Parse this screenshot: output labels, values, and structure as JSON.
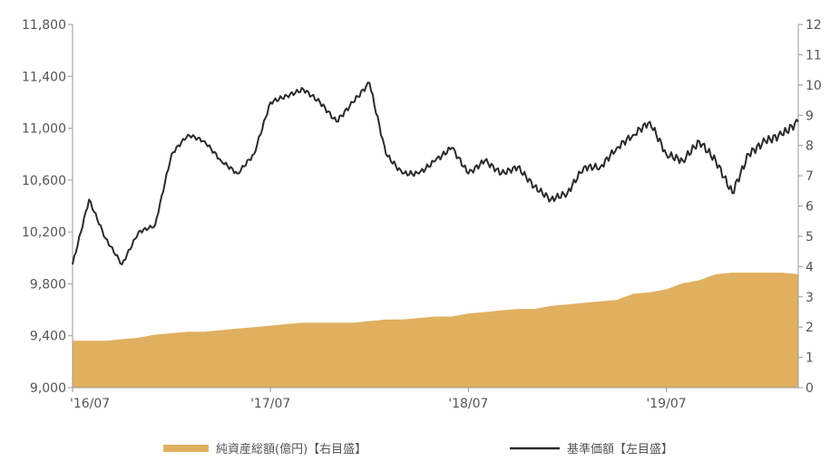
{
  "colors": {
    "line": "#2e2a2a",
    "area": "#e0b060",
    "axis": "#9a9a9a",
    "text": "#555555"
  },
  "legend": {
    "area_label": "純資産総額(億円)【右目盛】",
    "line_label": "基準価額【左目盛】"
  },
  "chart_data": {
    "type": "line",
    "title": "",
    "xlabel": "",
    "ylabel": "",
    "x_ticks": [
      "'16/07",
      "'17/07",
      "'18/07",
      "'19/07"
    ],
    "y_left_ticks": [
      "9,000",
      "9,400",
      "9,800",
      "10,200",
      "10,600",
      "11,000",
      "11,400",
      "11,800"
    ],
    "y_right_ticks": [
      "0",
      "1",
      "2",
      "3",
      "4",
      "5",
      "6",
      "7",
      "8",
      "9",
      "10",
      "11",
      "12"
    ],
    "y_left_lim": [
      9000,
      11800
    ],
    "y_right_lim": [
      0,
      12
    ],
    "x_lim": [
      "2016-07",
      "2020-03"
    ],
    "legend_position": "bottom",
    "series": [
      {
        "name": "基準価額【左目盛】",
        "axis": "left",
        "type": "line",
        "x": [
          "2016-07",
          "2016-08",
          "2016-09",
          "2016-10",
          "2016-11",
          "2016-12",
          "2017-01",
          "2017-02",
          "2017-03",
          "2017-04",
          "2017-05",
          "2017-06",
          "2017-07",
          "2017-08",
          "2017-09",
          "2017-10",
          "2017-11",
          "2017-12",
          "2018-01",
          "2018-02",
          "2018-03",
          "2018-04",
          "2018-05",
          "2018-06",
          "2018-07",
          "2018-08",
          "2018-09",
          "2018-10",
          "2018-11",
          "2018-12",
          "2019-01",
          "2019-02",
          "2019-03",
          "2019-04",
          "2019-05",
          "2019-06",
          "2019-07",
          "2019-08",
          "2019-09",
          "2019-10",
          "2019-11",
          "2019-12",
          "2020-01",
          "2020-02",
          "2020-03"
        ],
        "values": [
          9950,
          10450,
          10150,
          9950,
          10200,
          10250,
          10800,
          10950,
          10900,
          10750,
          10650,
          10800,
          11200,
          11250,
          11300,
          11200,
          11050,
          11200,
          11350,
          10800,
          10650,
          10650,
          10750,
          10850,
          10650,
          10750,
          10650,
          10700,
          10550,
          10450,
          10500,
          10700,
          10700,
          10850,
          10950,
          11050,
          10800,
          10750,
          10900,
          10750,
          10500,
          10800,
          10900,
          10950,
          11050
        ]
      },
      {
        "name": "純資産総額(億円)【右目盛】",
        "axis": "right",
        "type": "area",
        "x": [
          "2016-07",
          "2016-08",
          "2016-09",
          "2016-10",
          "2016-11",
          "2016-12",
          "2017-01",
          "2017-02",
          "2017-03",
          "2017-04",
          "2017-05",
          "2017-06",
          "2017-07",
          "2017-08",
          "2017-09",
          "2017-10",
          "2017-11",
          "2017-12",
          "2018-01",
          "2018-02",
          "2018-03",
          "2018-04",
          "2018-05",
          "2018-06",
          "2018-07",
          "2018-08",
          "2018-09",
          "2018-10",
          "2018-11",
          "2018-12",
          "2019-01",
          "2019-02",
          "2019-03",
          "2019-04",
          "2019-05",
          "2019-06",
          "2019-07",
          "2019-08",
          "2019-09",
          "2019-10",
          "2019-11",
          "2019-12",
          "2020-01",
          "2020-02",
          "2020-03"
        ],
        "values": [
          1.55,
          1.55,
          1.55,
          1.6,
          1.65,
          1.75,
          1.8,
          1.85,
          1.85,
          1.9,
          1.95,
          2.0,
          2.05,
          2.1,
          2.15,
          2.15,
          2.15,
          2.15,
          2.2,
          2.25,
          2.25,
          2.3,
          2.35,
          2.35,
          2.45,
          2.5,
          2.55,
          2.6,
          2.6,
          2.7,
          2.75,
          2.8,
          2.85,
          2.9,
          3.1,
          3.15,
          3.25,
          3.45,
          3.55,
          3.75,
          3.8,
          3.8,
          3.8,
          3.8,
          3.75
        ]
      }
    ]
  }
}
